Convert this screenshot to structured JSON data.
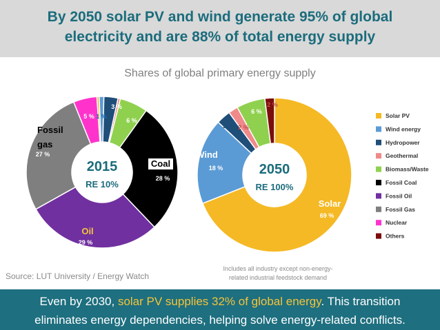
{
  "header": {
    "title_line1": "By 2050 solar PV and wind generate 95% of global",
    "title_line2": "electricity and are 88% of total energy supply"
  },
  "subtitle": "Shares of global primary energy supply",
  "source": "Source: LUT University / Energy Watch",
  "note_line1": "Includes all industry except non-energy-",
  "note_line2": "related  industrial feedstock demand",
  "footer": {
    "line1_pre": "Even by 2030, ",
    "line1_highlight": "solar PV supplies 32% of global energy",
    "line1_post": ". This transition",
    "line2": "eliminates energy dependencies, helping solve energy-related conflicts."
  },
  "colors": {
    "header_bg": "#d9d9d9",
    "title": "#1b6c7c",
    "footer_bg": "#1e6f7f",
    "highlight": "#f5c43a",
    "center_label": "#1b6c7c"
  },
  "chart_data": [
    {
      "type": "pie",
      "donut": true,
      "title": "2015",
      "center_subtitle": "RE 10%",
      "slices": [
        {
          "category": "Solar PV",
          "value": 0.5,
          "color": "#f5b925",
          "label": ""
        },
        {
          "category": "Wind energy",
          "value": 1,
          "color": "#5b9bd5",
          "label": "1 %"
        },
        {
          "category": "Hydropower",
          "value": 3,
          "color": "#1f4e79",
          "label": "3 %"
        },
        {
          "category": "Geothermal",
          "value": 0.5,
          "color": "#f08a8a",
          "label": ""
        },
        {
          "category": "Biomass/Waste",
          "value": 6,
          "color": "#8fd14f",
          "label": "6 %"
        },
        {
          "category": "Fossil Coal",
          "value": 28,
          "color": "#000000",
          "label": "28 %",
          "name_label": "Coal"
        },
        {
          "category": "Fossil Oil",
          "value": 29,
          "color": "#7030a0",
          "label": "29 %",
          "name_label": "Oil"
        },
        {
          "category": "Fossil Gas",
          "value": 27,
          "color": "#7f7f7f",
          "label": "27 %",
          "name_label_1": "Fossil",
          "name_label_2": "gas"
        },
        {
          "category": "Nuclear",
          "value": 5,
          "color": "#ff33cc",
          "label": "5 %"
        }
      ]
    },
    {
      "type": "pie",
      "donut": true,
      "title": "2050",
      "center_subtitle": "RE 100%",
      "slices": [
        {
          "category": "Solar PV",
          "value": 69,
          "color": "#f5b925",
          "label": "69 %",
          "name_label": "Solar"
        },
        {
          "category": "Wind energy",
          "value": 18,
          "color": "#5b9bd5",
          "label": "18 %",
          "name_label": "Wind"
        },
        {
          "category": "Hydropower",
          "value": 3,
          "color": "#1f4e79",
          "label": "3 %"
        },
        {
          "category": "Geothermal",
          "value": 2,
          "color": "#f08a8a",
          "label": "2 %"
        },
        {
          "category": "Biomass/Waste",
          "value": 6,
          "color": "#8fd14f",
          "label": "6 %"
        },
        {
          "category": "Others",
          "value": 2,
          "color": "#7b0d0d",
          "label": "2 %"
        }
      ]
    }
  ],
  "legend": [
    {
      "label": "Solar PV",
      "color": "#f5b925"
    },
    {
      "label": "Wind energy",
      "color": "#5b9bd5"
    },
    {
      "label": "Hydropower",
      "color": "#1f4e79"
    },
    {
      "label": "Geothermal",
      "color": "#f08a8a"
    },
    {
      "label": "Biomass/Waste",
      "color": "#8fd14f"
    },
    {
      "label": "Fossil Coal",
      "color": "#000000"
    },
    {
      "label": "Fossil Oil",
      "color": "#7030a0"
    },
    {
      "label": "Fossil Gas",
      "color": "#7f7f7f"
    },
    {
      "label": "Nuclear",
      "color": "#ff33cc"
    },
    {
      "label": "Others",
      "color": "#7b0d0d"
    }
  ]
}
